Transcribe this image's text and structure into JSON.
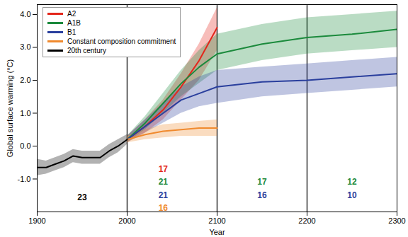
{
  "chart_data": {
    "type": "line",
    "xlabel": "Year",
    "ylabel": "Global surface warming (°C)",
    "xlim": [
      1900,
      2300
    ],
    "xticks": [
      1900,
      2000,
      2100,
      2200,
      2300
    ],
    "ylim": [
      -2.0,
      4.3
    ],
    "yticks": [
      {
        "value": -1,
        "label": "-1.0"
      },
      {
        "value": 0,
        "label": "0.0"
      },
      {
        "value": 1,
        "label": "1.0"
      },
      {
        "value": 2,
        "label": "2.0"
      },
      {
        "value": 3,
        "label": "3.0"
      },
      {
        "value": 4,
        "label": "4.0"
      }
    ],
    "legend": "top-left",
    "series": [
      {
        "name": "A2",
        "color": "#e3261b",
        "x": [
          2000,
          2020,
          2040,
          2060,
          2080,
          2100
        ],
        "values": [
          0.2,
          0.6,
          1.1,
          1.8,
          2.6,
          3.6
        ],
        "lower": [
          0.1,
          0.4,
          0.8,
          1.4,
          2.0,
          2.9
        ],
        "upper": [
          0.3,
          0.8,
          1.4,
          2.2,
          3.1,
          4.2
        ]
      },
      {
        "name": "A1B",
        "color": "#1b8a3c",
        "x": [
          2000,
          2020,
          2040,
          2060,
          2080,
          2100,
          2150,
          2200,
          2250,
          2300
        ],
        "values": [
          0.2,
          0.7,
          1.3,
          1.9,
          2.4,
          2.8,
          3.1,
          3.3,
          3.4,
          3.55
        ],
        "lower": [
          0.1,
          0.5,
          1.0,
          1.5,
          1.9,
          2.3,
          2.6,
          2.8,
          2.9,
          3.0
        ],
        "upper": [
          0.3,
          0.9,
          1.6,
          2.3,
          2.9,
          3.4,
          3.7,
          3.9,
          4.0,
          4.1
        ]
      },
      {
        "name": "B1",
        "color": "#2a3f9d",
        "x": [
          2000,
          2020,
          2040,
          2060,
          2080,
          2100,
          2150,
          2200,
          2250,
          2300
        ],
        "values": [
          0.2,
          0.6,
          1.0,
          1.4,
          1.6,
          1.8,
          1.95,
          2.0,
          2.1,
          2.2
        ],
        "lower": [
          0.1,
          0.4,
          0.7,
          1.0,
          1.2,
          1.3,
          1.5,
          1.6,
          1.7,
          1.8
        ],
        "upper": [
          0.3,
          0.8,
          1.3,
          1.8,
          2.1,
          2.3,
          2.4,
          2.5,
          2.6,
          2.7
        ]
      },
      {
        "name": "Constant composition commitment",
        "color": "#f08a2e",
        "x": [
          2000,
          2020,
          2040,
          2060,
          2080,
          2100
        ],
        "values": [
          0.2,
          0.35,
          0.45,
          0.5,
          0.55,
          0.55
        ],
        "lower": [
          0.1,
          0.2,
          0.25,
          0.3,
          0.3,
          0.3
        ],
        "upper": [
          0.3,
          0.5,
          0.65,
          0.7,
          0.75,
          0.8
        ]
      },
      {
        "name": "20th century",
        "color": "#000000",
        "x": [
          1900,
          1910,
          1920,
          1930,
          1940,
          1950,
          1960,
          1970,
          1980,
          1990,
          2000
        ],
        "values": [
          -0.65,
          -0.65,
          -0.55,
          -0.45,
          -0.3,
          -0.35,
          -0.35,
          -0.35,
          -0.15,
          0.0,
          0.2
        ],
        "lower": [
          -0.9,
          -0.85,
          -0.75,
          -0.65,
          -0.5,
          -0.55,
          -0.55,
          -0.55,
          -0.35,
          -0.2,
          0.05
        ],
        "upper": [
          -0.4,
          -0.45,
          -0.35,
          -0.25,
          -0.1,
          -0.15,
          -0.15,
          -0.15,
          0.05,
          0.2,
          0.35
        ]
      }
    ],
    "annotations": [
      {
        "text": "23",
        "x": 1950,
        "y": -1.56,
        "color": "#000000"
      },
      {
        "text": "17",
        "x": 2040,
        "y": -0.7,
        "color": "#e3261b"
      },
      {
        "text": "21",
        "x": 2040,
        "y": -1.1,
        "color": "#1b8a3c"
      },
      {
        "text": "21",
        "x": 2040,
        "y": -1.5,
        "color": "#2a3f9d"
      },
      {
        "text": "16",
        "x": 2040,
        "y": -1.88,
        "color": "#f08a2e"
      },
      {
        "text": "17",
        "x": 2150,
        "y": -1.1,
        "color": "#1b8a3c"
      },
      {
        "text": "16",
        "x": 2150,
        "y": -1.5,
        "color": "#2a3f9d"
      },
      {
        "text": "12",
        "x": 2250,
        "y": -1.1,
        "color": "#1b8a3c"
      },
      {
        "text": "10",
        "x": 2250,
        "y": -1.5,
        "color": "#2a3f9d"
      }
    ]
  }
}
